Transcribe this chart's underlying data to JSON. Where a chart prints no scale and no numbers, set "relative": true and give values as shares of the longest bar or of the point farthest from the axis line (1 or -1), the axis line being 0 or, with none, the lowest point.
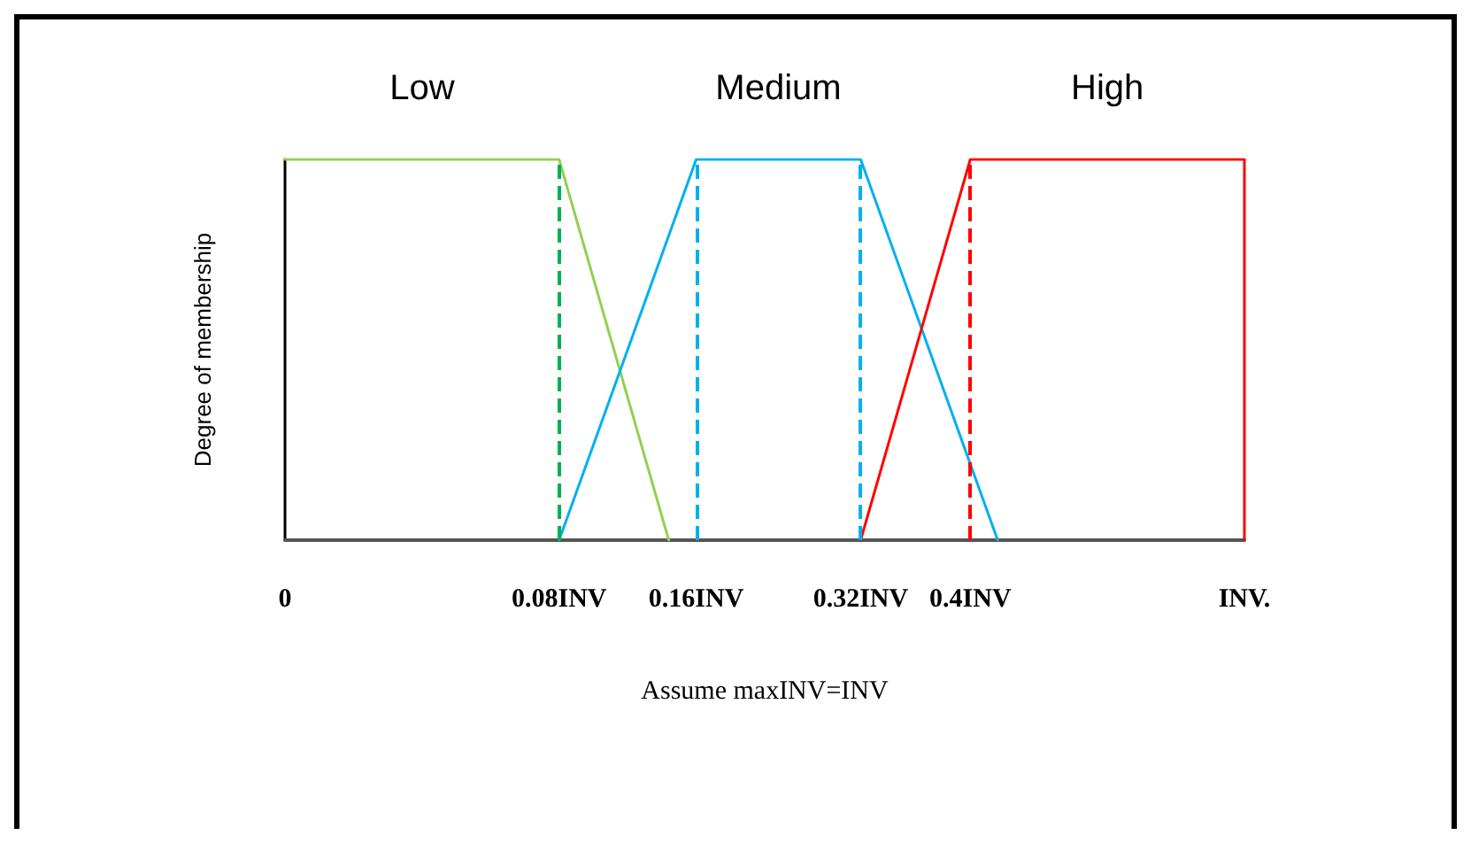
{
  "chart_data": {
    "type": "line",
    "xlabel": "Assume maxINV=INV",
    "ylabel": "Degree of membership",
    "relative": true,
    "grid": false,
    "legend": false,
    "marker": "none",
    "line_style": "solid",
    "categories": [
      "0",
      null,
      null,
      null,
      null,
      null,
      null,
      null,
      null,
      null,
      "0.08INV",
      null,
      null,
      null,
      null,
      "0.16INV",
      null,
      null,
      null,
      null,
      null,
      "0.32INV",
      null,
      null,
      null,
      "0.4INV",
      null,
      null,
      null,
      null,
      null,
      null,
      null,
      null,
      null,
      "INV."
    ],
    "series": [
      {
        "name": "Low",
        "color": "#92d050",
        "values": [
          1,
          null,
          null,
          null,
          null,
          null,
          null,
          null,
          null,
          null,
          1,
          null,
          null,
          null,
          0,
          null,
          null,
          null,
          null,
          null,
          null,
          null,
          null,
          null,
          null,
          null,
          null,
          null,
          null,
          null,
          null,
          null,
          null,
          null,
          null,
          null
        ]
      },
      {
        "name": "Medium",
        "color": "#00b0f0",
        "values": [
          null,
          null,
          null,
          null,
          null,
          null,
          null,
          null,
          null,
          null,
          0,
          null,
          null,
          null,
          null,
          1,
          null,
          null,
          null,
          null,
          null,
          1,
          null,
          null,
          null,
          null,
          0,
          null,
          null,
          null,
          null,
          null,
          null,
          null,
          null,
          null
        ]
      },
      {
        "name": "High",
        "color": "#ff0000",
        "values": [
          null,
          null,
          null,
          null,
          null,
          null,
          null,
          null,
          null,
          null,
          null,
          null,
          null,
          null,
          null,
          null,
          null,
          null,
          null,
          null,
          null,
          0,
          null,
          null,
          null,
          1,
          null,
          null,
          null,
          null,
          null,
          null,
          null,
          null,
          null,
          1
        ]
      }
    ],
    "ref_lines": [
      {
        "axis": "x",
        "value": "0.08INV",
        "color": "#00b050",
        "line_style": "dashed"
      },
      {
        "axis": "x",
        "value": "0.16INV",
        "color": "#00b0f0",
        "line_style": "dashed"
      },
      {
        "axis": "x",
        "value": "0.32INV",
        "color": "#00b0f0",
        "line_style": "dashed"
      },
      {
        "axis": "x",
        "value": "0.4INV",
        "color": "#ff0000",
        "line_style": "dashed"
      },
      {
        "axis": "x",
        "value": "INV.",
        "color": "#ff0000",
        "line_style": "solid"
      }
    ]
  }
}
